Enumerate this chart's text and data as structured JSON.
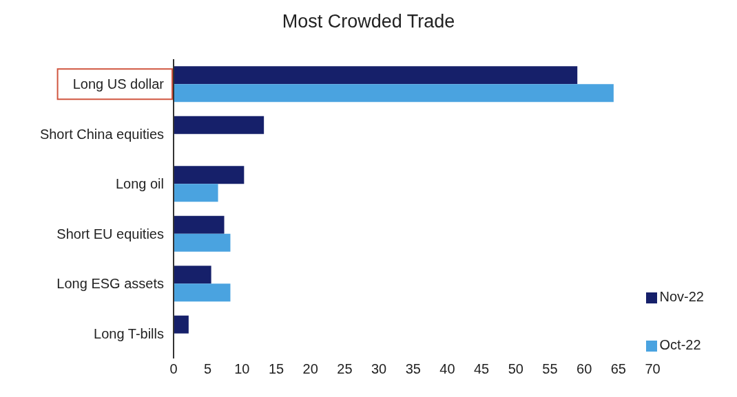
{
  "chart_data": {
    "type": "bar",
    "orientation": "horizontal",
    "title": "Most Crowded Trade",
    "categories": [
      "Long US dollar",
      "Short China equities",
      "Long oil",
      "Short EU equities",
      "Long ESG assets",
      "Long T-bills"
    ],
    "series": [
      {
        "name": "Nov-22",
        "color": "#16206a",
        "values": [
          59,
          13.2,
          10.3,
          7.4,
          5.5,
          2.2
        ]
      },
      {
        "name": "Oct-22",
        "color": "#4aa3e0",
        "values": [
          64.3,
          null,
          6.5,
          8.3,
          8.3,
          null
        ]
      }
    ],
    "xlim": [
      0,
      70
    ],
    "xticks": [
      0,
      5,
      10,
      15,
      20,
      25,
      30,
      35,
      40,
      45,
      50,
      55,
      60,
      65,
      70
    ],
    "grid": false,
    "legend": "right"
  }
}
